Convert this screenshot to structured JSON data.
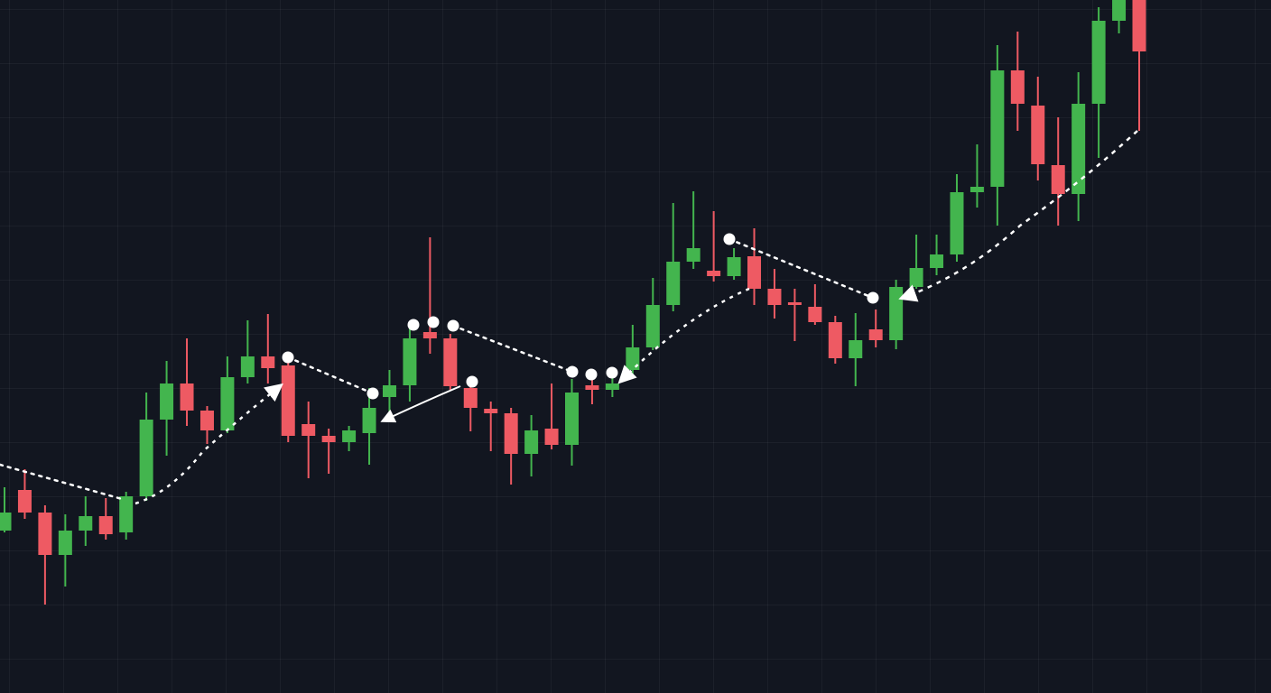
{
  "chart_data": {
    "type": "candlestick",
    "grid": true,
    "ylim": [
      0,
      768
    ],
    "up_color": "#43b54e",
    "down_color": "#ee5a63",
    "categories": [
      null,
      null,
      null,
      null,
      null,
      null,
      null,
      null,
      null,
      null,
      null,
      null,
      null,
      null,
      null,
      null,
      null,
      null,
      null,
      null,
      null,
      null,
      null,
      null,
      null,
      null,
      null,
      null,
      null,
      null,
      null,
      null,
      null,
      null,
      null,
      null,
      null,
      null,
      null,
      null,
      null,
      null,
      null,
      null,
      null,
      null,
      null,
      null,
      null,
      null,
      null,
      null,
      null,
      null,
      null,
      null,
      null
    ],
    "open": [
      180,
      225,
      200,
      153,
      180,
      196,
      178,
      218,
      303,
      343,
      313,
      291,
      350,
      373,
      363,
      298,
      285,
      278,
      288,
      328,
      341,
      400,
      393,
      338,
      315,
      310,
      265,
      293,
      275,
      341,
      336,
      358,
      383,
      430,
      478,
      468,
      462,
      484,
      448,
      433,
      428,
      411,
      371,
      403,
      391,
      450,
      471,
      486,
      555,
      561,
      690,
      651,
      585,
      553,
      653,
      745,
      768
    ],
    "high": [
      228,
      248,
      208,
      198,
      218,
      216,
      223,
      333,
      368,
      393,
      318,
      373,
      413,
      420,
      368,
      323,
      293,
      296,
      338,
      358,
      408,
      505,
      398,
      350,
      323,
      316,
      308,
      343,
      348,
      350,
      356,
      408,
      460,
      543,
      556,
      534,
      493,
      515,
      470,
      448,
      453,
      418,
      421,
      425,
      458,
      508,
      508,
      575,
      608,
      718,
      733,
      683,
      638,
      688,
      760,
      768,
      768
    ],
    "low": [
      178,
      193,
      98,
      118,
      163,
      170,
      170,
      213,
      263,
      296,
      276,
      288,
      343,
      343,
      278,
      238,
      243,
      268,
      253,
      306,
      323,
      376,
      336,
      290,
      268,
      231,
      240,
      270,
      252,
      320,
      328,
      353,
      380,
      423,
      470,
      456,
      458,
      430,
      415,
      390,
      408,
      365,
      340,
      383,
      381,
      448,
      463,
      478,
      538,
      518,
      623,
      568,
      518,
      523,
      593,
      731,
      623
    ],
    "close": [
      200,
      200,
      153,
      180,
      196,
      176,
      218,
      303,
      343,
      313,
      291,
      350,
      373,
      360,
      285,
      285,
      278,
      291,
      316,
      341,
      393,
      393,
      340,
      316,
      310,
      265,
      291,
      275,
      333,
      336,
      343,
      383,
      430,
      478,
      493,
      462,
      483,
      448,
      430,
      430,
      411,
      371,
      391,
      391,
      450,
      471,
      486,
      555,
      561,
      690,
      653,
      586,
      553,
      653,
      745,
      768,
      711
    ]
  }
}
